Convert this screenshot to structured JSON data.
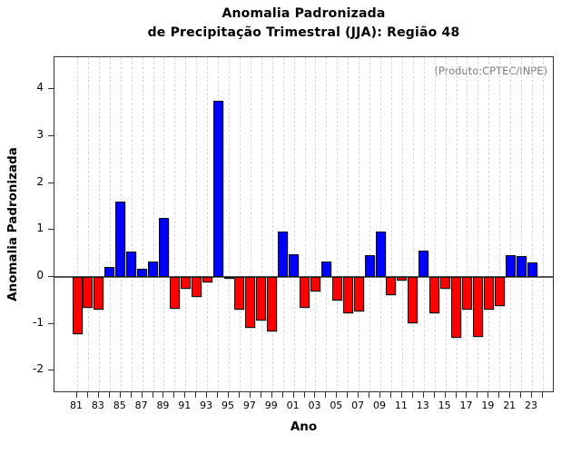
{
  "title": {
    "line1": "Anomalia Padronizada",
    "line2": "de Precipitação Trimestral (JJA): Região 48"
  },
  "annotation": "(Produto:CPTEC/INPE)",
  "colors": {
    "positive_bar": "#0000ff",
    "negative_bar": "#ff0000",
    "annotation_text": "#7d7d7d",
    "zero_line": "#555555",
    "grid_line": "#d9d9d9",
    "axis": "#333333"
  },
  "chart_data": {
    "type": "bar",
    "title": "Anomalia Padronizada de Precipitação Trimestral (JJA): Região 48",
    "xlabel": "Ano",
    "ylabel": "Anomalia Padronizada",
    "annotation": "(Produto:CPTEC/INPE)",
    "ylim": [
      -2.5,
      4.7
    ],
    "yticks": [
      -2,
      -1,
      0,
      1,
      2,
      3,
      4
    ],
    "grid": "vertical dashed line at every year, no horizontal grid",
    "legend": "none; blue = positive anomaly, red = negative anomaly",
    "x_axis_first_year": 1981,
    "x_axis_last_tick_year": 2024,
    "xtick_labels": [
      "81",
      "83",
      "85",
      "87",
      "89",
      "91",
      "93",
      "95",
      "97",
      "99",
      "01",
      "03",
      "05",
      "07",
      "09",
      "11",
      "13",
      "15",
      "17",
      "19",
      "21",
      "23"
    ],
    "years": [
      1981,
      1982,
      1983,
      1984,
      1985,
      1986,
      1987,
      1988,
      1989,
      1990,
      1991,
      1992,
      1993,
      1994,
      1995,
      1996,
      1997,
      1998,
      1999,
      2000,
      2001,
      2002,
      2003,
      2004,
      2005,
      2006,
      2007,
      2008,
      2009,
      2010,
      2011,
      2012,
      2013,
      2014,
      2015,
      2016,
      2017,
      2018,
      2019,
      2020,
      2021,
      2022,
      2023
    ],
    "values": [
      -1.22,
      -0.65,
      -0.7,
      0.22,
      1.6,
      0.54,
      0.18,
      0.33,
      1.25,
      -0.68,
      -0.26,
      -0.43,
      -0.12,
      3.75,
      -0.02,
      -0.7,
      -1.08,
      -0.92,
      -1.17,
      0.97,
      0.49,
      -0.65,
      -0.3,
      0.32,
      -0.5,
      -0.78,
      -0.74,
      0.46,
      0.97,
      -0.38,
      -0.07,
      -0.98,
      0.56,
      -0.77,
      -0.25,
      -1.3,
      -0.7,
      -1.28,
      -0.7,
      -0.62,
      0.47,
      0.44,
      0.31
    ]
  }
}
